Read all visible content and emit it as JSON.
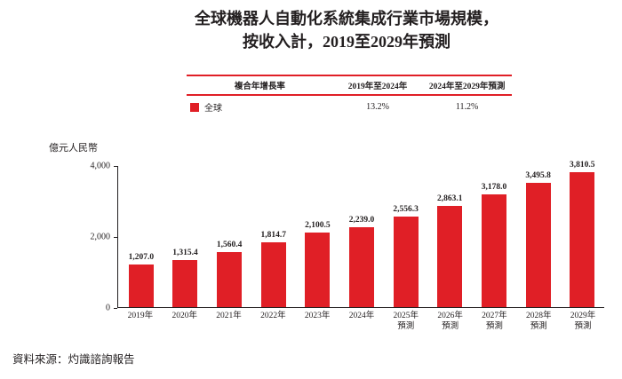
{
  "page": {
    "title_line1": "全球機器人自動化系統集成行業市場規模，",
    "title_line2": "按收入計，2019至2029年預測",
    "source": "資料來源：灼識諮詢報告"
  },
  "cagr_table": {
    "col_headers": [
      "複合年增長率",
      "2019年至2024年",
      "2024年至2029年預測"
    ],
    "rows": [
      {
        "label": "全球",
        "values": [
          "13.2%",
          "11.2%"
        ]
      }
    ]
  },
  "chart_data": {
    "type": "bar",
    "title": "全球機器人自動化系統集成行業市場規模，按收入計，2019至2029年預測",
    "ylabel": "億元人民幣",
    "ylim": [
      0,
      4000
    ],
    "grid": false,
    "legend_position": "top-table",
    "bar_color": "#e01f26",
    "yticks": [
      {
        "value": 0,
        "label": "0"
      },
      {
        "value": 2000,
        "label": "2,000"
      },
      {
        "value": 4000,
        "label": "4,000"
      }
    ],
    "categories": [
      "2019年",
      "2020年",
      "2021年",
      "2022年",
      "2023年",
      "2024年",
      "2025年",
      "2026年",
      "2027年",
      "2028年",
      "2029年"
    ],
    "category_notes": [
      "",
      "",
      "",
      "",
      "",
      "",
      "預測",
      "預測",
      "預測",
      "預測",
      "預測"
    ],
    "values": [
      1207.0,
      1315.4,
      1560.4,
      1814.7,
      2100.5,
      2239.0,
      2556.3,
      2863.1,
      3178.0,
      3495.8,
      3810.5
    ],
    "value_labels": [
      "1,207.0",
      "1,315.4",
      "1,560.4",
      "1,814.7",
      "2,100.5",
      "2,239.0",
      "2,556.3",
      "2,863.1",
      "3,178.0",
      "3,495.8",
      "3,810.5"
    ]
  }
}
